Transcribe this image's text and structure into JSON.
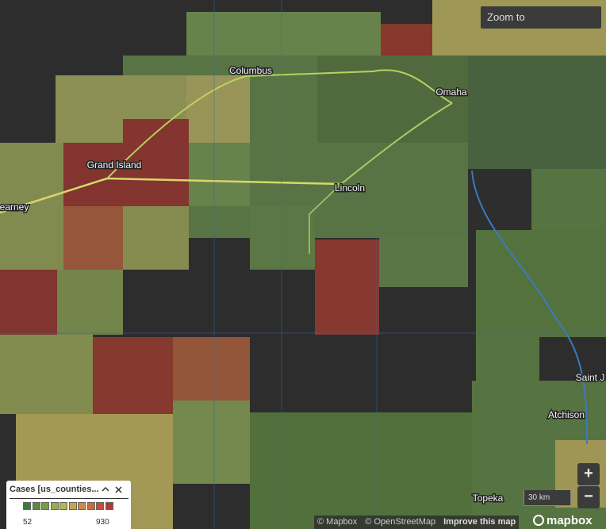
{
  "search": {
    "placeholder": "Zoom to"
  },
  "places": [
    {
      "label": "Columbus"
    },
    {
      "label": "Omaha"
    },
    {
      "label": "Grand Island"
    },
    {
      "label": "Lincoln"
    },
    {
      "label": "earney"
    },
    {
      "label": "Saint J"
    },
    {
      "label": "Atchison"
    },
    {
      "label": "Topeka"
    }
  ],
  "legend": {
    "title": "Cases [us_counties...",
    "colors": [
      "#3e7a3a",
      "#5a8a3f",
      "#7a9a45",
      "#9aaa4e",
      "#b8b457",
      "#c9a44f",
      "#cf8a45",
      "#cc6b3d",
      "#c24f38",
      "#b03a33"
    ],
    "min": 52,
    "max": 930
  },
  "scale": "30 km",
  "attribution": [
    "© Mapbox",
    "© OpenStreetMap",
    "Improve this map"
  ],
  "logo": "mapbox",
  "zoom": {
    "in": "+",
    "out": "−"
  }
}
